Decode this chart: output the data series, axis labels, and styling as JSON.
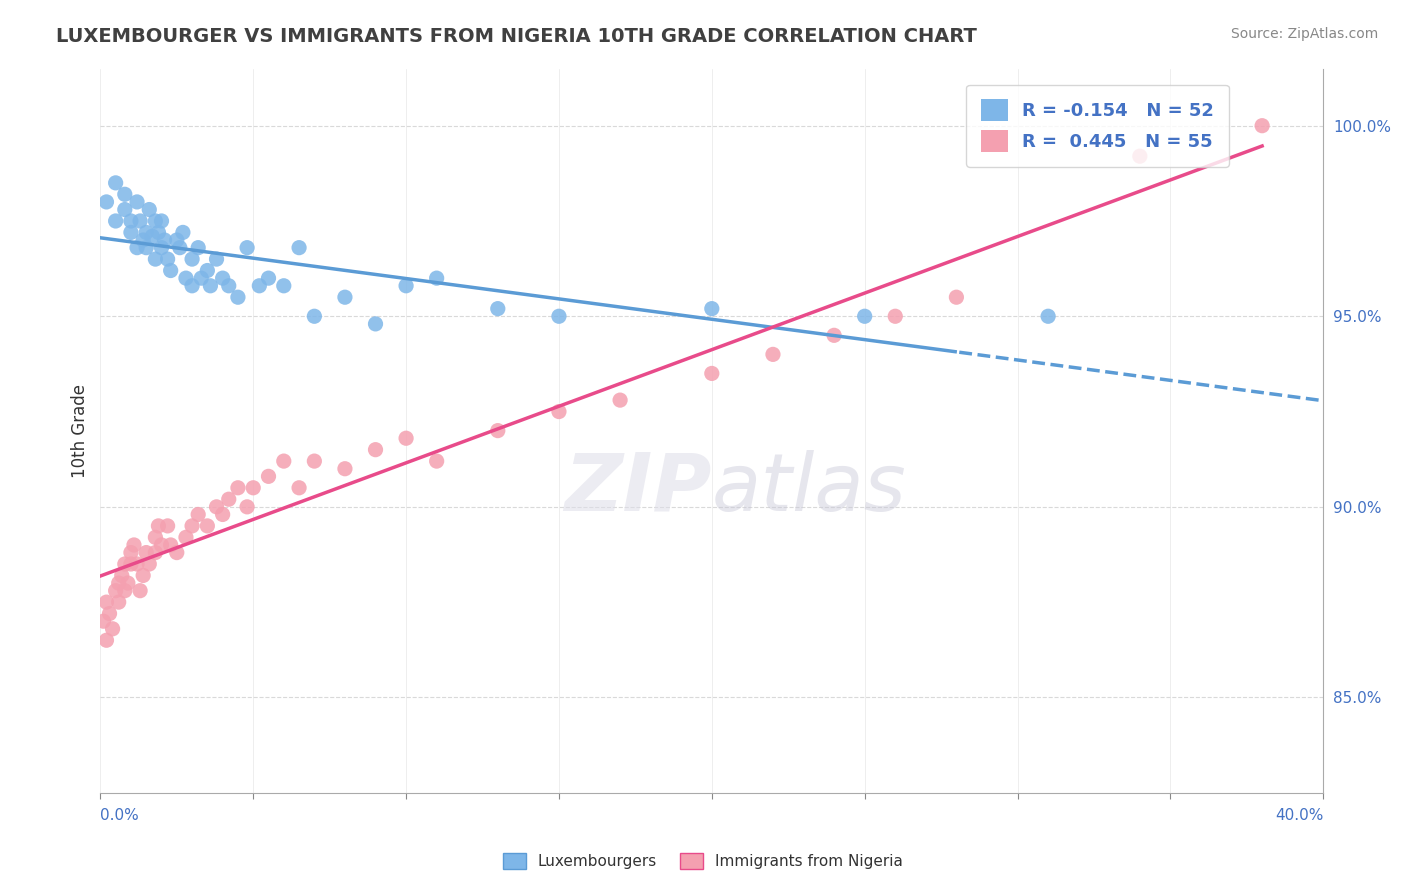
{
  "title": "LUXEMBOURGER VS IMMIGRANTS FROM NIGERIA 10TH GRADE CORRELATION CHART",
  "source": "Source: ZipAtlas.com",
  "ylabel": "10th Grade",
  "ylabel_right_vals": [
    1.0,
    0.95,
    0.9,
    0.85
  ],
  "xmin": 0.0,
  "xmax": 0.4,
  "ymin": 0.825,
  "ymax": 1.015,
  "blue_color": "#7EB6E8",
  "pink_color": "#F4A0B0",
  "blue_line_color": "#5B9BD5",
  "pink_line_color": "#E84B8A",
  "watermark_ZIP": "ZIP",
  "watermark_atlas": "atlas",
  "background_color": "#FFFFFF",
  "grid_color": "#D0D0D0",
  "blue_scatter_x": [
    0.002,
    0.005,
    0.005,
    0.008,
    0.008,
    0.01,
    0.01,
    0.012,
    0.012,
    0.013,
    0.014,
    0.015,
    0.015,
    0.016,
    0.017,
    0.018,
    0.018,
    0.019,
    0.02,
    0.02,
    0.021,
    0.022,
    0.023,
    0.025,
    0.026,
    0.027,
    0.028,
    0.03,
    0.03,
    0.032,
    0.033,
    0.035,
    0.036,
    0.038,
    0.04,
    0.042,
    0.045,
    0.048,
    0.052,
    0.055,
    0.06,
    0.065,
    0.07,
    0.08,
    0.09,
    0.1,
    0.11,
    0.13,
    0.15,
    0.2,
    0.25,
    0.31
  ],
  "blue_scatter_y": [
    0.98,
    0.975,
    0.985,
    0.978,
    0.982,
    0.975,
    0.972,
    0.98,
    0.968,
    0.975,
    0.97,
    0.972,
    0.968,
    0.978,
    0.971,
    0.975,
    0.965,
    0.972,
    0.968,
    0.975,
    0.97,
    0.965,
    0.962,
    0.97,
    0.968,
    0.972,
    0.96,
    0.965,
    0.958,
    0.968,
    0.96,
    0.962,
    0.958,
    0.965,
    0.96,
    0.958,
    0.955,
    0.968,
    0.958,
    0.96,
    0.958,
    0.968,
    0.95,
    0.955,
    0.948,
    0.958,
    0.96,
    0.952,
    0.95,
    0.952,
    0.95,
    0.95
  ],
  "pink_scatter_x": [
    0.001,
    0.002,
    0.002,
    0.003,
    0.004,
    0.005,
    0.006,
    0.006,
    0.007,
    0.008,
    0.008,
    0.009,
    0.01,
    0.01,
    0.011,
    0.012,
    0.013,
    0.014,
    0.015,
    0.016,
    0.018,
    0.018,
    0.019,
    0.02,
    0.022,
    0.023,
    0.025,
    0.028,
    0.03,
    0.032,
    0.035,
    0.038,
    0.04,
    0.042,
    0.045,
    0.048,
    0.05,
    0.055,
    0.06,
    0.065,
    0.07,
    0.08,
    0.09,
    0.1,
    0.11,
    0.13,
    0.15,
    0.17,
    0.2,
    0.22,
    0.24,
    0.26,
    0.28,
    0.34,
    0.38
  ],
  "pink_scatter_y": [
    0.87,
    0.875,
    0.865,
    0.872,
    0.868,
    0.878,
    0.88,
    0.875,
    0.882,
    0.878,
    0.885,
    0.88,
    0.888,
    0.885,
    0.89,
    0.885,
    0.878,
    0.882,
    0.888,
    0.885,
    0.892,
    0.888,
    0.895,
    0.89,
    0.895,
    0.89,
    0.888,
    0.892,
    0.895,
    0.898,
    0.895,
    0.9,
    0.898,
    0.902,
    0.905,
    0.9,
    0.905,
    0.908,
    0.912,
    0.905,
    0.912,
    0.91,
    0.915,
    0.918,
    0.912,
    0.92,
    0.925,
    0.928,
    0.935,
    0.94,
    0.945,
    0.95,
    0.955,
    0.992,
    1.0
  ]
}
